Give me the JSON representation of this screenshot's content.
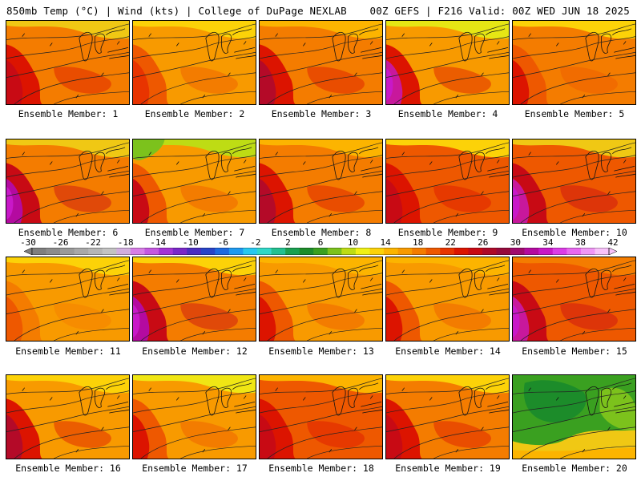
{
  "header": {
    "left": "850mb Temp (°C) | Wind (kts) | College of DuPage NEXLAB",
    "right": "00Z GEFS | F216 Valid: 00Z WED JUN 18 2025"
  },
  "colorbar": {
    "labels": [
      "-30",
      "-26",
      "-22",
      "-18",
      "-14",
      "-10",
      "-6",
      "-2",
      "2",
      "6",
      "10",
      "14",
      "18",
      "22",
      "26",
      "30",
      "34",
      "38",
      "42"
    ],
    "colors": [
      "#7f7f7f",
      "#8c8c8c",
      "#9a9a9a",
      "#a8a8a8",
      "#b5b5b5",
      "#c3c3c3",
      "#d1aede",
      "#d77ee6",
      "#c458e0",
      "#a334d6",
      "#7a28c8",
      "#4b2dc0",
      "#2844c8",
      "#1e6ae0",
      "#1e9af0",
      "#28c8f0",
      "#30d8c8",
      "#22c090",
      "#1aa050",
      "#1c8c2a",
      "#3aa020",
      "#7cc21c",
      "#bedc14",
      "#f0f014",
      "#fcd208",
      "#fcb400",
      "#f89a00",
      "#f47c00",
      "#ee5800",
      "#e83400",
      "#dc1400",
      "#c80a14",
      "#ae0a28",
      "#960a3c",
      "#a00a6e",
      "#b40aa0",
      "#c818c8",
      "#dc3ce6",
      "#e868f0",
      "#f096f6",
      "#f8c2fa"
    ]
  },
  "panels": [
    {
      "label": "Ensemble Member: 1"
    },
    {
      "label": "Ensemble Member: 2"
    },
    {
      "label": "Ensemble Member: 3"
    },
    {
      "label": "Ensemble Member: 4"
    },
    {
      "label": "Ensemble Member: 5"
    },
    {
      "label": "Ensemble Member: 6"
    },
    {
      "label": "Ensemble Member: 7"
    },
    {
      "label": "Ensemble Member: 8"
    },
    {
      "label": "Ensemble Member: 9"
    },
    {
      "label": "Ensemble Member: 10"
    },
    {
      "label": "Ensemble Member: 11"
    },
    {
      "label": "Ensemble Member: 12"
    },
    {
      "label": "Ensemble Member: 13"
    },
    {
      "label": "Ensemble Member: 14"
    },
    {
      "label": "Ensemble Member: 15"
    },
    {
      "label": "Ensemble Member: 16"
    },
    {
      "label": "Ensemble Member: 17"
    },
    {
      "label": "Ensemble Member: 18"
    },
    {
      "label": "Ensemble Member: 19"
    },
    {
      "label": "Ensemble Member: 20"
    }
  ]
}
